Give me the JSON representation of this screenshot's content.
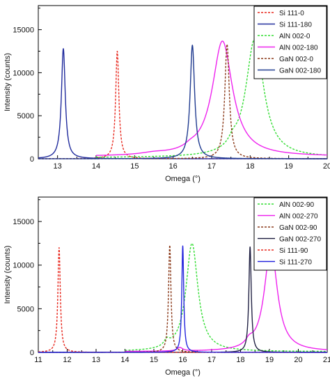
{
  "chart_data": [
    {
      "type": "line",
      "xlabel": "Omega (°)",
      "ylabel": "Intensity (counts)",
      "xlim": [
        12.5,
        20
      ],
      "ylim": [
        0,
        17800
      ],
      "xticks": [
        13,
        14,
        15,
        16,
        17,
        18,
        19,
        20
      ],
      "yticks": [
        0,
        5000,
        10000,
        15000
      ],
      "legend_position": "top-right",
      "grid": false,
      "series": [
        {
          "name": "Si 111-0",
          "color": "#e8281e",
          "dashed": true,
          "range": [
            12.5,
            20
          ],
          "baseline": 0,
          "peaks": [
            [
              14.55,
              12500,
              0.05
            ]
          ]
        },
        {
          "name": "Si 111-180",
          "color": "#1f2a9c",
          "dashed": false,
          "range": [
            12.5,
            20
          ],
          "baseline": 0,
          "peaks": [
            [
              13.15,
              12800,
              0.06
            ]
          ]
        },
        {
          "name": "AlN 002-0",
          "color": "#33dd33",
          "dashed": true,
          "range": [
            14,
            20
          ],
          "baseline": 120,
          "peaks": [
            [
              18.12,
              13800,
              0.28
            ],
            [
              17.55,
              700,
              0.12
            ]
          ]
        },
        {
          "name": "AlN 002-180",
          "color": "#ee22ee",
          "dashed": false,
          "range": [
            14,
            20
          ],
          "baseline": 250,
          "peaks": [
            [
              17.28,
              13400,
              0.32
            ],
            [
              16.45,
              300,
              0.18
            ],
            [
              15.5,
              200,
              0.4
            ]
          ]
        },
        {
          "name": "GaN 002-0",
          "color": "#8b3a1a",
          "dashed": true,
          "range": [
            12.5,
            20
          ],
          "baseline": 0,
          "peaks": [
            [
              17.4,
              13300,
              0.07
            ]
          ]
        },
        {
          "name": "GaN 002-180",
          "color": "#1f3a8f",
          "dashed": false,
          "range": [
            12.5,
            20
          ],
          "baseline": 0,
          "peaks": [
            [
              16.5,
              13200,
              0.07
            ]
          ]
        }
      ]
    },
    {
      "type": "line",
      "xlabel": "Omega (°)",
      "ylabel": "Intensity (counts)",
      "xlim": [
        11,
        21
      ],
      "ylim": [
        0,
        17800
      ],
      "xticks": [
        11,
        12,
        13,
        14,
        15,
        16,
        17,
        18,
        19,
        20,
        21
      ],
      "yticks": [
        0,
        5000,
        10000,
        15000
      ],
      "legend_position": "top-right",
      "grid": false,
      "series": [
        {
          "name": "AlN 002-90",
          "color": "#33dd33",
          "dashed": true,
          "range": [
            14,
            21
          ],
          "baseline": 80,
          "peaks": [
            [
              16.32,
              12400,
              0.25
            ],
            [
              15.45,
              700,
              0.12
            ]
          ]
        },
        {
          "name": "AlN 002-270",
          "color": "#ee22ee",
          "dashed": false,
          "range": [
            14,
            21
          ],
          "baseline": 80,
          "peaks": [
            [
              19.05,
              12000,
              0.27
            ],
            [
              18.3,
              600,
              0.15
            ],
            [
              15.9,
              400,
              0.12
            ]
          ]
        },
        {
          "name": "GaN 002-90",
          "color": "#8b3a1a",
          "dashed": true,
          "range": [
            11,
            21
          ],
          "baseline": 0,
          "peaks": [
            [
              15.55,
              12300,
              0.05
            ]
          ]
        },
        {
          "name": "GaN 002-270",
          "color": "#222244",
          "dashed": false,
          "range": [
            11,
            21
          ],
          "baseline": 0,
          "peaks": [
            [
              18.33,
              12100,
              0.05
            ]
          ]
        },
        {
          "name": "Si 111-90",
          "color": "#e8281e",
          "dashed": true,
          "range": [
            11,
            21
          ],
          "baseline": 0,
          "peaks": [
            [
              11.72,
              12000,
              0.05
            ]
          ]
        },
        {
          "name": "Si 111-270",
          "color": "#2424dd",
          "dashed": false,
          "range": [
            11,
            21
          ],
          "baseline": 0,
          "peaks": [
            [
              16.0,
              12200,
              0.04
            ]
          ]
        }
      ]
    }
  ]
}
